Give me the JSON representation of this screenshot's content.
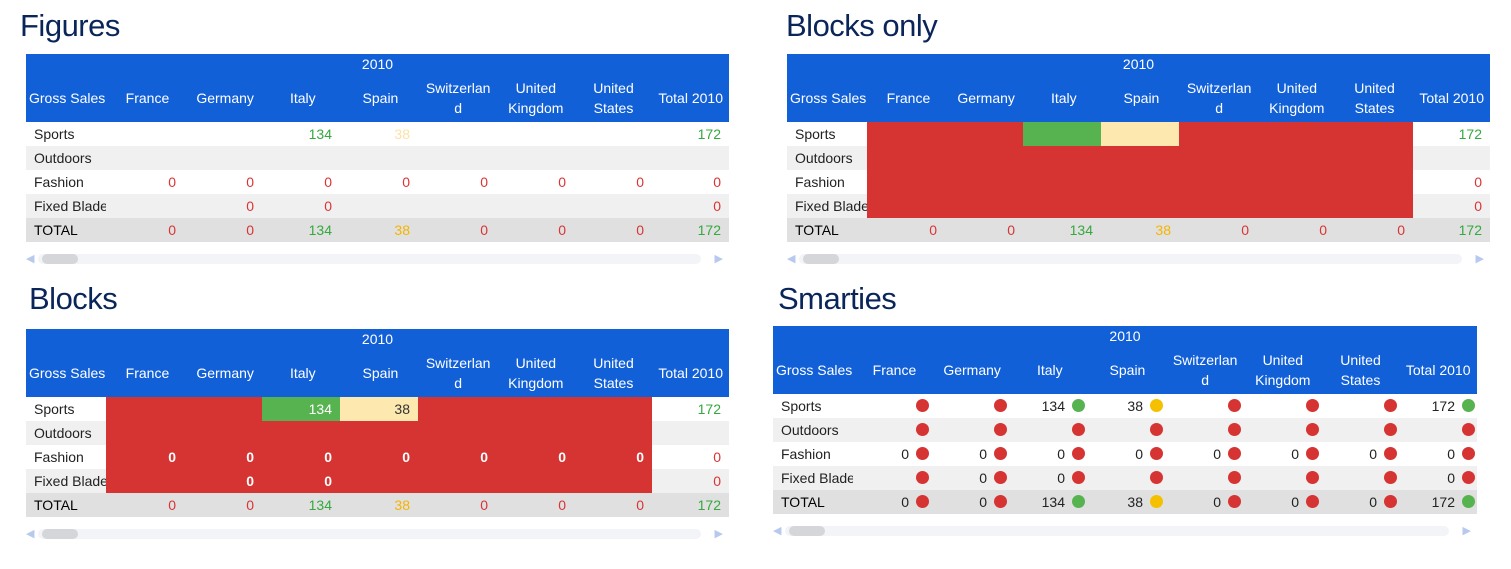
{
  "colors": {
    "header": "#1160d8",
    "red": "#d63333",
    "green": "#56b350",
    "yellow": "#f5c000",
    "light_yellow": "#fde9b0",
    "title": "#0a2559"
  },
  "panels": {
    "figures": {
      "title": "Figures"
    },
    "blocks_only": {
      "title": "Blocks only"
    },
    "blocks": {
      "title": "Blocks"
    },
    "smarties": {
      "title": "Smarties"
    }
  },
  "table": {
    "year": "2010",
    "columns": [
      "Gross Sales",
      "France",
      "Germany",
      "Italy",
      "Spain",
      "Switzerland",
      "United Kingdom",
      "United States",
      "Total 2010"
    ],
    "rows": [
      {
        "label": "Sports",
        "values": [
          "",
          "",
          "134",
          "38",
          "",
          "",
          "",
          "172"
        ],
        "status": [
          "red",
          "red",
          "green",
          "yellow",
          "red",
          "red",
          "red",
          "green"
        ]
      },
      {
        "label": "Outdoors",
        "values": [
          "",
          "",
          "",
          "",
          "",
          "",
          "",
          ""
        ],
        "status": [
          "red",
          "red",
          "red",
          "red",
          "red",
          "red",
          "red",
          "red"
        ]
      },
      {
        "label": "Fashion",
        "values": [
          "0",
          "0",
          "0",
          "0",
          "0",
          "0",
          "0",
          "0"
        ],
        "status": [
          "red",
          "red",
          "red",
          "red",
          "red",
          "red",
          "red",
          "red"
        ]
      },
      {
        "label": "Fixed Blade",
        "values": [
          "",
          "0",
          "0",
          "",
          "",
          "",
          "",
          "0"
        ],
        "status": [
          "red",
          "red",
          "red",
          "red",
          "red",
          "red",
          "red",
          "red"
        ]
      }
    ],
    "total": {
      "label": "TOTAL",
      "values": [
        "0",
        "0",
        "134",
        "38",
        "0",
        "0",
        "0",
        "172"
      ],
      "status": [
        "red",
        "red",
        "green",
        "yellow",
        "red",
        "red",
        "red",
        "green"
      ]
    }
  }
}
